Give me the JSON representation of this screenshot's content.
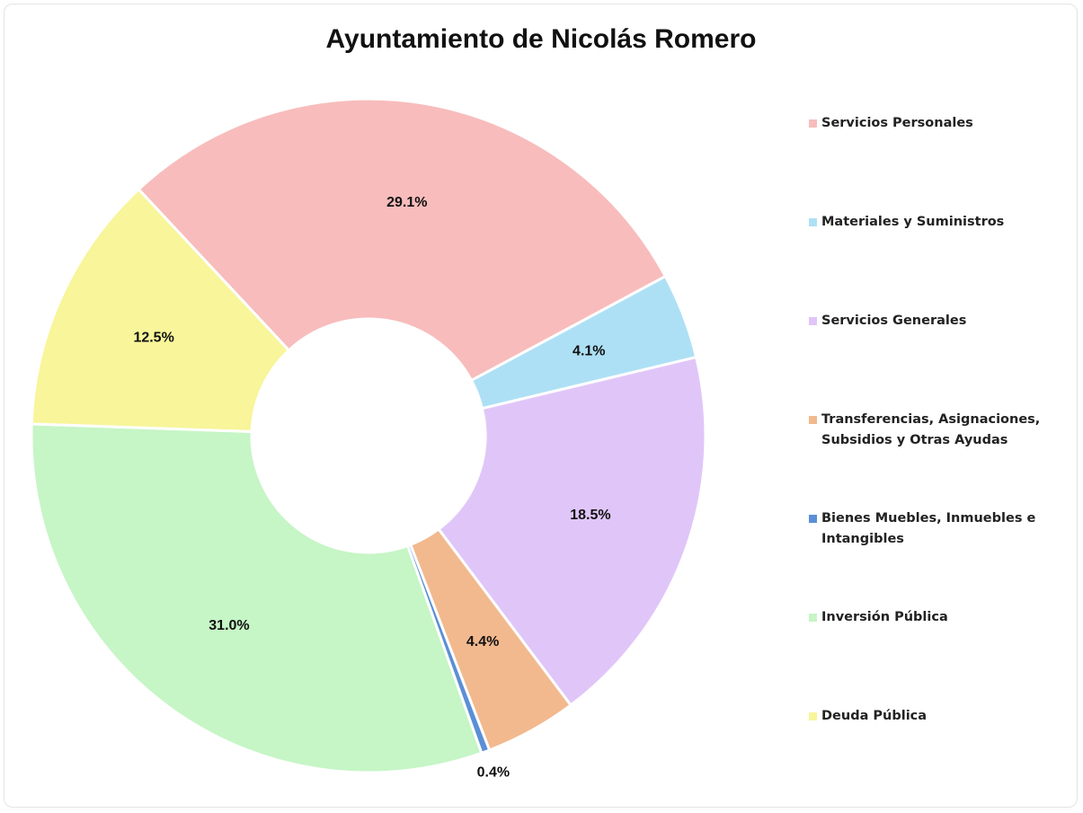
{
  "chart_data": {
    "type": "donut",
    "title": "Ayuntamiento de Nicolás Romero",
    "categories": [
      "Servicios Personales",
      "Materiales y Suministros",
      "Servicios Generales",
      "Transferencias, Asignaciones, Subsidios y Otras Ayudas",
      "Bienes Muebles, Inmuebles e Intangibles",
      "Inversión Pública",
      "Deuda Pública"
    ],
    "values": [
      29.1,
      4.1,
      18.5,
      4.4,
      0.4,
      31.0,
      12.5
    ],
    "value_labels": [
      "29.1%",
      "4.1%",
      "18.5%",
      "4.4%",
      "0.4%",
      "31.0%",
      "12.5%"
    ],
    "colors": [
      "#f8bcbc",
      "#aee0f5",
      "#e0c6f8",
      "#f2b98e",
      "#5b8fd6",
      "#c6f5c6",
      "#f8f59a"
    ],
    "legend": "right"
  }
}
